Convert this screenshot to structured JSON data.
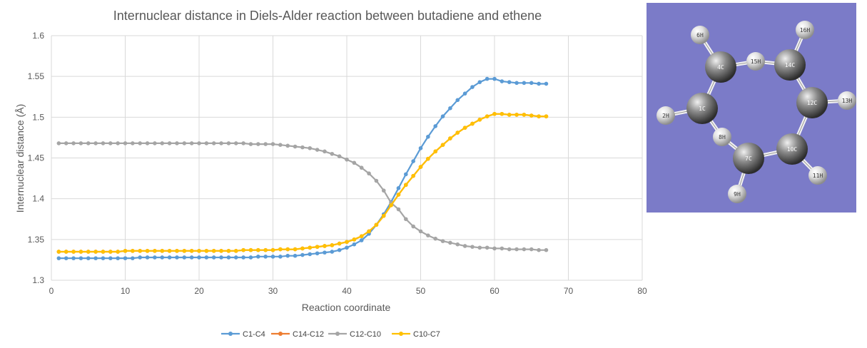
{
  "chart_data": {
    "type": "line",
    "title": "Internuclear distance in Diels-Alder reaction between butadiene and ethene",
    "xlabel": "Reaction coordinate",
    "ylabel": "Internuclear distance (Å)",
    "xlim": [
      0,
      80
    ],
    "ylim": [
      1.3,
      1.6
    ],
    "xticks": [
      "0",
      "10",
      "20",
      "30",
      "40",
      "50",
      "60",
      "70",
      "80"
    ],
    "yticks": [
      "1.3",
      "1.35",
      "1.4",
      "1.45",
      "1.5",
      "1.55",
      "1.6"
    ],
    "grid": true,
    "legend_position": "bottom",
    "x": [
      1,
      2,
      3,
      4,
      5,
      6,
      7,
      8,
      9,
      10,
      11,
      12,
      13,
      14,
      15,
      16,
      17,
      18,
      19,
      20,
      21,
      22,
      23,
      24,
      25,
      26,
      27,
      28,
      29,
      30,
      31,
      32,
      33,
      34,
      35,
      36,
      37,
      38,
      39,
      40,
      41,
      42,
      43,
      44,
      45,
      46,
      47,
      48,
      49,
      50,
      51,
      52,
      53,
      54,
      55,
      56,
      57,
      58,
      59,
      60,
      61,
      62,
      63,
      64,
      65,
      66,
      67
    ],
    "series": [
      {
        "name": "C1-C4",
        "color": "#5b9bd5",
        "values": [
          1.327,
          1.327,
          1.327,
          1.327,
          1.327,
          1.327,
          1.327,
          1.327,
          1.327,
          1.327,
          1.327,
          1.328,
          1.328,
          1.328,
          1.328,
          1.328,
          1.328,
          1.328,
          1.328,
          1.328,
          1.328,
          1.328,
          1.328,
          1.328,
          1.328,
          1.328,
          1.328,
          1.329,
          1.329,
          1.329,
          1.329,
          1.33,
          1.33,
          1.331,
          1.332,
          1.333,
          1.334,
          1.335,
          1.337,
          1.34,
          1.344,
          1.349,
          1.357,
          1.368,
          1.381,
          1.396,
          1.413,
          1.43,
          1.446,
          1.462,
          1.476,
          1.489,
          1.501,
          1.511,
          1.521,
          1.529,
          1.537,
          1.543,
          1.547,
          1.547,
          1.544,
          1.543,
          1.542,
          1.542,
          1.542,
          1.541,
          1.541
        ]
      },
      {
        "name": "C14-C12",
        "color": "#ed7d31",
        "values": [
          1.335,
          1.335,
          1.335,
          1.335,
          1.335,
          1.335,
          1.335,
          1.335,
          1.335,
          1.336,
          1.336,
          1.336,
          1.336,
          1.336,
          1.336,
          1.336,
          1.336,
          1.336,
          1.336,
          1.336,
          1.336,
          1.336,
          1.336,
          1.336,
          1.336,
          1.337,
          1.337,
          1.337,
          1.337,
          1.337,
          1.338,
          1.338,
          1.338,
          1.339,
          1.34,
          1.341,
          1.342,
          1.343,
          1.345,
          1.347,
          1.35,
          1.354,
          1.36,
          1.368,
          1.379,
          1.392,
          1.405,
          1.417,
          1.428,
          1.439,
          1.449,
          1.458,
          1.466,
          1.474,
          1.481,
          1.487,
          1.492,
          1.497,
          1.501,
          1.504,
          1.504,
          1.503,
          1.503,
          1.503,
          1.502,
          1.501,
          1.501
        ]
      },
      {
        "name": "C12-C10",
        "color": "#a5a5a5",
        "values": [
          1.468,
          1.468,
          1.468,
          1.468,
          1.468,
          1.468,
          1.468,
          1.468,
          1.468,
          1.468,
          1.468,
          1.468,
          1.468,
          1.468,
          1.468,
          1.468,
          1.468,
          1.468,
          1.468,
          1.468,
          1.468,
          1.468,
          1.468,
          1.468,
          1.468,
          1.468,
          1.467,
          1.467,
          1.467,
          1.467,
          1.466,
          1.465,
          1.464,
          1.463,
          1.462,
          1.46,
          1.458,
          1.455,
          1.452,
          1.448,
          1.444,
          1.438,
          1.431,
          1.422,
          1.41,
          1.395,
          1.387,
          1.375,
          1.366,
          1.36,
          1.355,
          1.351,
          1.348,
          1.346,
          1.344,
          1.342,
          1.341,
          1.34,
          1.34,
          1.339,
          1.339,
          1.338,
          1.338,
          1.338,
          1.338,
          1.337,
          1.337
        ]
      },
      {
        "name": "C10-C7",
        "color": "#ffc000",
        "values": [
          1.335,
          1.335,
          1.335,
          1.335,
          1.335,
          1.335,
          1.335,
          1.335,
          1.335,
          1.336,
          1.336,
          1.336,
          1.336,
          1.336,
          1.336,
          1.336,
          1.336,
          1.336,
          1.336,
          1.336,
          1.336,
          1.336,
          1.336,
          1.336,
          1.336,
          1.337,
          1.337,
          1.337,
          1.337,
          1.337,
          1.338,
          1.338,
          1.338,
          1.339,
          1.34,
          1.341,
          1.342,
          1.343,
          1.345,
          1.347,
          1.35,
          1.354,
          1.36,
          1.368,
          1.379,
          1.392,
          1.405,
          1.417,
          1.428,
          1.439,
          1.449,
          1.458,
          1.466,
          1.474,
          1.481,
          1.487,
          1.492,
          1.497,
          1.501,
          1.504,
          1.504,
          1.503,
          1.503,
          1.503,
          1.502,
          1.501,
          1.501
        ]
      }
    ]
  },
  "molecule": {
    "background": "#7b7bc8",
    "atoms": [
      {
        "label": "6H"
      },
      {
        "label": "16H"
      },
      {
        "label": "4C"
      },
      {
        "label": "15H"
      },
      {
        "label": "14C"
      },
      {
        "label": "2H"
      },
      {
        "label": "1C"
      },
      {
        "label": "12C"
      },
      {
        "label": "13H"
      },
      {
        "label": "8H"
      },
      {
        "label": "7C"
      },
      {
        "label": "10C"
      },
      {
        "label": "11H"
      },
      {
        "label": "9H"
      }
    ]
  }
}
